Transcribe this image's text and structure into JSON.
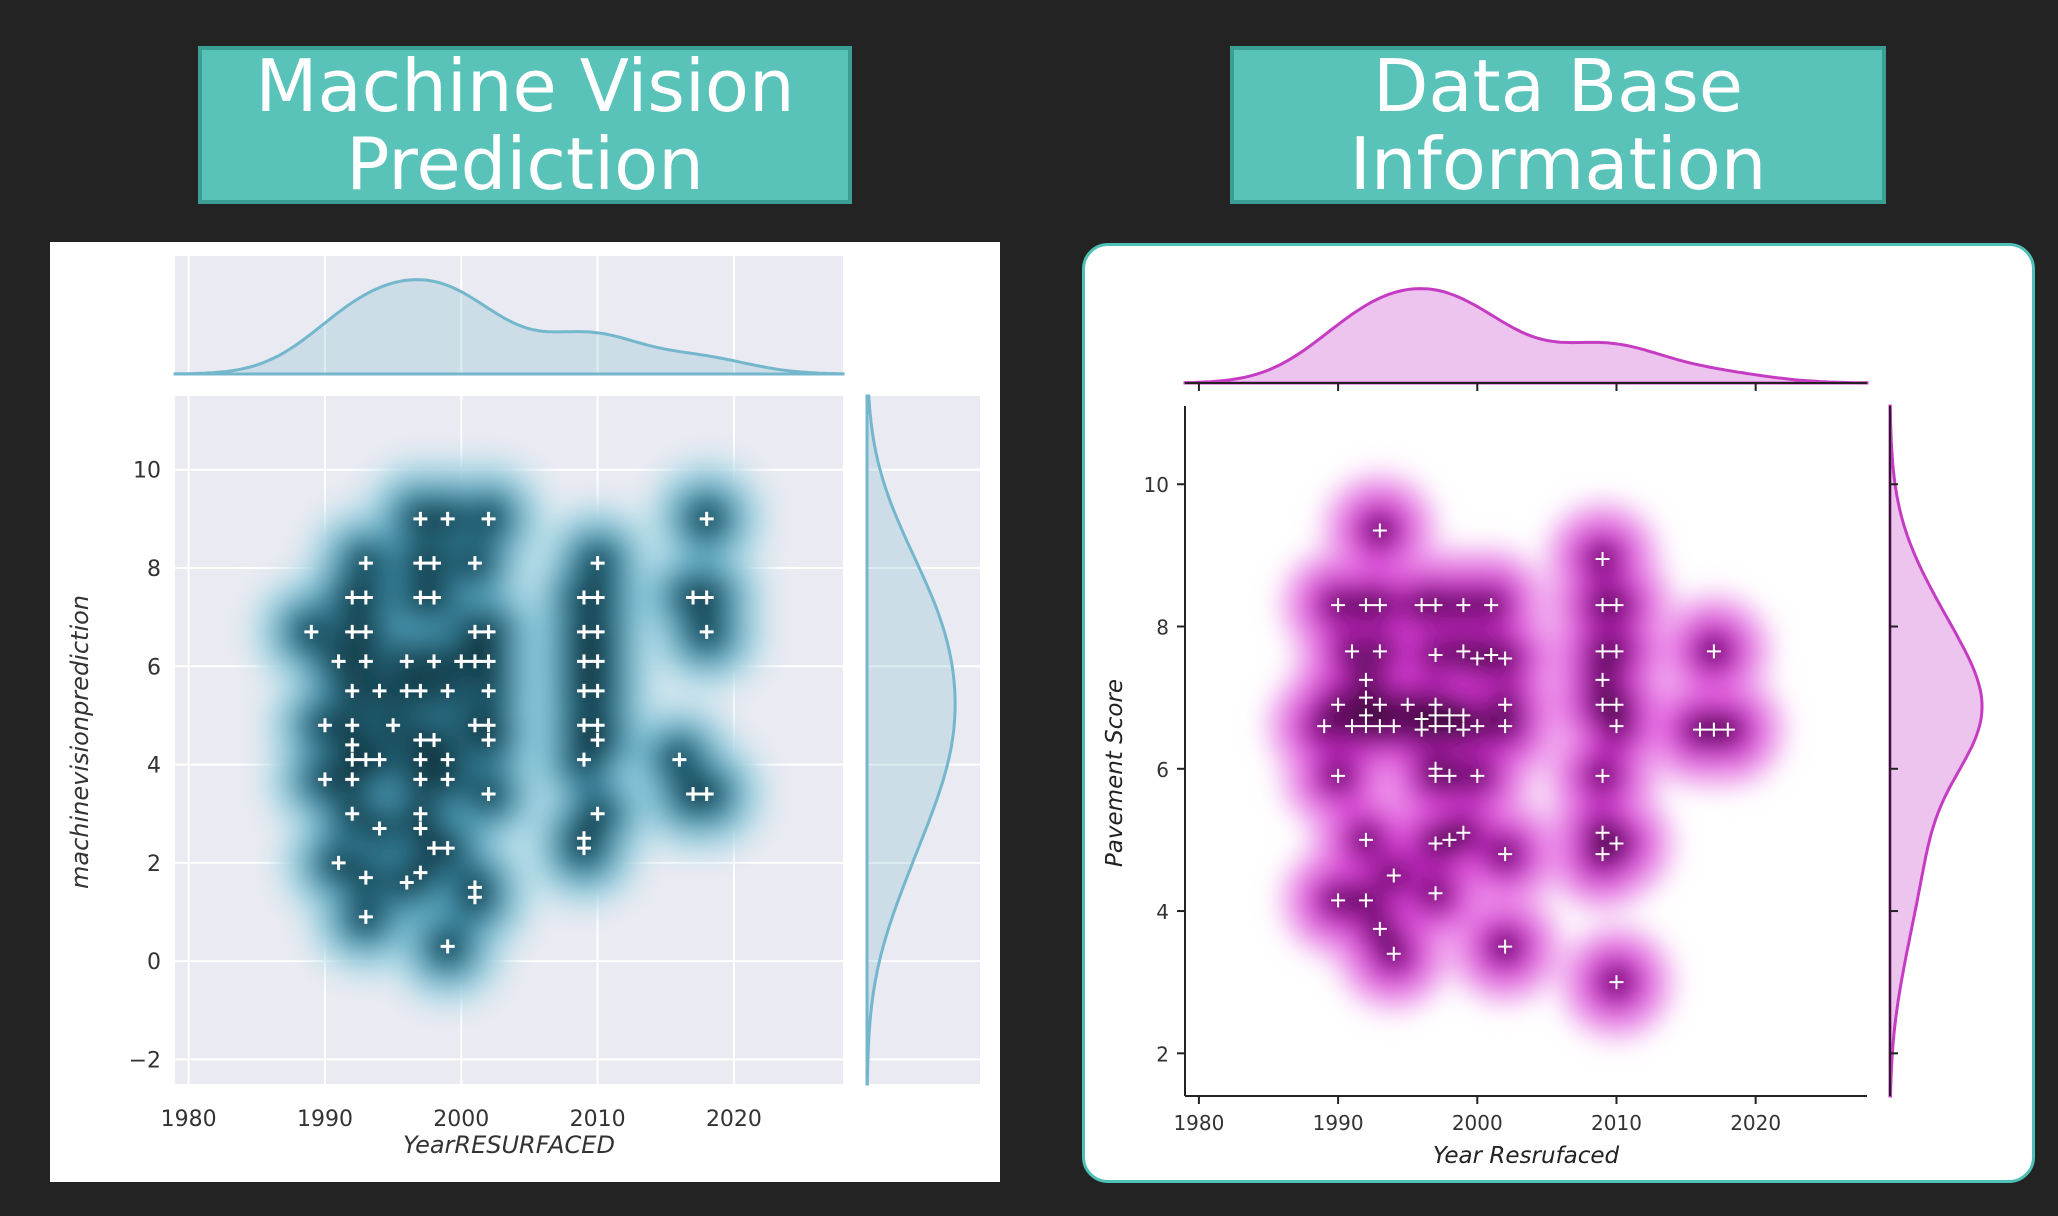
{
  "left_title": [
    "Machine Vision",
    "Prediction"
  ],
  "right_title": [
    "Data Base",
    "Information"
  ],
  "chart_data": [
    {
      "type": "scatter",
      "title": "Machine Vision Prediction",
      "xlabel": "YearRESURFACED",
      "ylabel": "machine_vision_prediction",
      "xlim": [
        1979,
        2028
      ],
      "ylim": [
        -2.5,
        11.5
      ],
      "xticks": [
        1980,
        1990,
        2000,
        2010,
        2020
      ],
      "yticks": [
        -2,
        0,
        2,
        4,
        6,
        8,
        10
      ],
      "grid": true,
      "style": "seaborn darkgrid jointplot (kde + marginal kde)",
      "colors": {
        "accent": "#74b7cc",
        "dark": "#0b2a2f",
        "points": "#ffffff",
        "bg": "#eaeaf2"
      },
      "points": [
        [
          1997,
          9
        ],
        [
          1999,
          9
        ],
        [
          2002,
          9
        ],
        [
          2018,
          9
        ],
        [
          1993,
          8.1
        ],
        [
          1997,
          8.1
        ],
        [
          1998,
          8.1
        ],
        [
          2001,
          8.1
        ],
        [
          2010,
          8.1
        ],
        [
          1992,
          7.4
        ],
        [
          1993,
          7.4
        ],
        [
          1997,
          7.4
        ],
        [
          1998,
          7.4
        ],
        [
          2009,
          7.4
        ],
        [
          2010,
          7.4
        ],
        [
          2017,
          7.4
        ],
        [
          2018,
          7.4
        ],
        [
          1989,
          6.7
        ],
        [
          1992,
          6.7
        ],
        [
          1993,
          6.7
        ],
        [
          2001,
          6.7
        ],
        [
          2002,
          6.7
        ],
        [
          2009,
          6.7
        ],
        [
          2010,
          6.7
        ],
        [
          2018,
          6.7
        ],
        [
          1991,
          6.1
        ],
        [
          1993,
          6.1
        ],
        [
          1996,
          6.1
        ],
        [
          1998,
          6.1
        ],
        [
          2000,
          6.1
        ],
        [
          2001,
          6.1
        ],
        [
          2002,
          6.1
        ],
        [
          2009,
          6.1
        ],
        [
          2010,
          6.1
        ],
        [
          1992,
          5.5
        ],
        [
          1994,
          5.5
        ],
        [
          1996,
          5.5
        ],
        [
          1997,
          5.5
        ],
        [
          1999,
          5.5
        ],
        [
          2002,
          5.5
        ],
        [
          2009,
          5.5
        ],
        [
          2010,
          5.5
        ],
        [
          1992,
          4.8
        ],
        [
          1995,
          4.8
        ],
        [
          2001,
          4.8
        ],
        [
          2002,
          4.8
        ],
        [
          2009,
          4.8
        ],
        [
          2010,
          4.8
        ],
        [
          1990,
          4.8
        ],
        [
          1992,
          4.4
        ],
        [
          1997,
          4.5
        ],
        [
          1998,
          4.5
        ],
        [
          2002,
          4.5
        ],
        [
          2010,
          4.5
        ],
        [
          1992,
          4.1
        ],
        [
          1993,
          4.1
        ],
        [
          1994,
          4.1
        ],
        [
          1997,
          4.1
        ],
        [
          1999,
          4.1
        ],
        [
          2009,
          4.1
        ],
        [
          2016,
          4.1
        ],
        [
          1990,
          3.7
        ],
        [
          1992,
          3.7
        ],
        [
          1997,
          3.7
        ],
        [
          1999,
          3.7
        ],
        [
          2017,
          3.4
        ],
        [
          2018,
          3.4
        ],
        [
          2002,
          3.4
        ],
        [
          1992,
          3.0
        ],
        [
          1997,
          3.0
        ],
        [
          2010,
          3.0
        ],
        [
          1994,
          2.7
        ],
        [
          1997,
          2.7
        ],
        [
          2009,
          2.5
        ],
        [
          2009,
          2.3
        ],
        [
          1998,
          2.3
        ],
        [
          1999,
          2.3
        ],
        [
          1991,
          2.0
        ],
        [
          1997,
          1.8
        ],
        [
          1993,
          1.7
        ],
        [
          1996,
          1.6
        ],
        [
          2001,
          1.5
        ],
        [
          2001,
          1.3
        ],
        [
          1993,
          0.9
        ],
        [
          1999,
          0.3
        ]
      ]
    },
    {
      "type": "scatter",
      "title": "Data Base Information",
      "xlabel": "Year Resrufaced",
      "ylabel": "Pavement Score",
      "xlim": [
        1979,
        2028
      ],
      "ylim": [
        1.4,
        11.1
      ],
      "xticks": [
        1980,
        1990,
        2000,
        2010,
        2020
      ],
      "yticks": [
        2,
        4,
        6,
        8,
        10
      ],
      "grid": false,
      "style": "seaborn ticks jointplot (kde + marginal kde)",
      "colors": {
        "accent": "#c53cc3",
        "dark": "#1c0719",
        "points": "#ffffff",
        "bg": "#ffffff"
      },
      "points": [
        [
          1993,
          9.35
        ],
        [
          2009,
          8.95
        ],
        [
          1990,
          8.3
        ],
        [
          1992,
          8.3
        ],
        [
          1993,
          8.3
        ],
        [
          1996,
          8.3
        ],
        [
          1997,
          8.3
        ],
        [
          1999,
          8.3
        ],
        [
          2001,
          8.3
        ],
        [
          2009,
          8.3
        ],
        [
          2010,
          8.3
        ],
        [
          1991,
          7.65
        ],
        [
          1993,
          7.65
        ],
        [
          1997,
          7.6
        ],
        [
          1999,
          7.65
        ],
        [
          2000,
          7.55
        ],
        [
          2001,
          7.6
        ],
        [
          2002,
          7.55
        ],
        [
          2009,
          7.65
        ],
        [
          2010,
          7.65
        ],
        [
          2017,
          7.65
        ],
        [
          1992,
          7.25
        ],
        [
          2009,
          7.25
        ],
        [
          1992,
          7.0
        ],
        [
          1990,
          6.9
        ],
        [
          1993,
          6.9
        ],
        [
          1995,
          6.9
        ],
        [
          1997,
          6.9
        ],
        [
          2002,
          6.9
        ],
        [
          2009,
          6.9
        ],
        [
          2010,
          6.9
        ],
        [
          1992,
          6.75
        ],
        [
          1996,
          6.7
        ],
        [
          1997,
          6.75
        ],
        [
          1998,
          6.75
        ],
        [
          1999,
          6.75
        ],
        [
          1989,
          6.6
        ],
        [
          1991,
          6.6
        ],
        [
          1992,
          6.6
        ],
        [
          1993,
          6.6
        ],
        [
          1994,
          6.6
        ],
        [
          1997,
          6.6
        ],
        [
          1998,
          6.6
        ],
        [
          2000,
          6.6
        ],
        [
          2002,
          6.6
        ],
        [
          2010,
          6.6
        ],
        [
          2016,
          6.55
        ],
        [
          2017,
          6.55
        ],
        [
          2018,
          6.55
        ],
        [
          1996,
          6.55
        ],
        [
          1999,
          6.55
        ],
        [
          1997,
          6.0
        ],
        [
          1990,
          5.9
        ],
        [
          1997,
          5.9
        ],
        [
          1998,
          5.9
        ],
        [
          2000,
          5.9
        ],
        [
          2009,
          5.9
        ],
        [
          1992,
          5.0
        ],
        [
          1997,
          4.95
        ],
        [
          1998,
          5.0
        ],
        [
          1999,
          5.1
        ],
        [
          2002,
          4.8
        ],
        [
          2009,
          5.1
        ],
        [
          2010,
          4.95
        ],
        [
          2009,
          4.8
        ],
        [
          1994,
          4.5
        ],
        [
          1997,
          4.25
        ],
        [
          1990,
          4.15
        ],
        [
          1992,
          4.15
        ],
        [
          1993,
          3.75
        ],
        [
          1994,
          3.4
        ],
        [
          2002,
          3.5
        ],
        [
          2010,
          3.0
        ]
      ]
    }
  ]
}
